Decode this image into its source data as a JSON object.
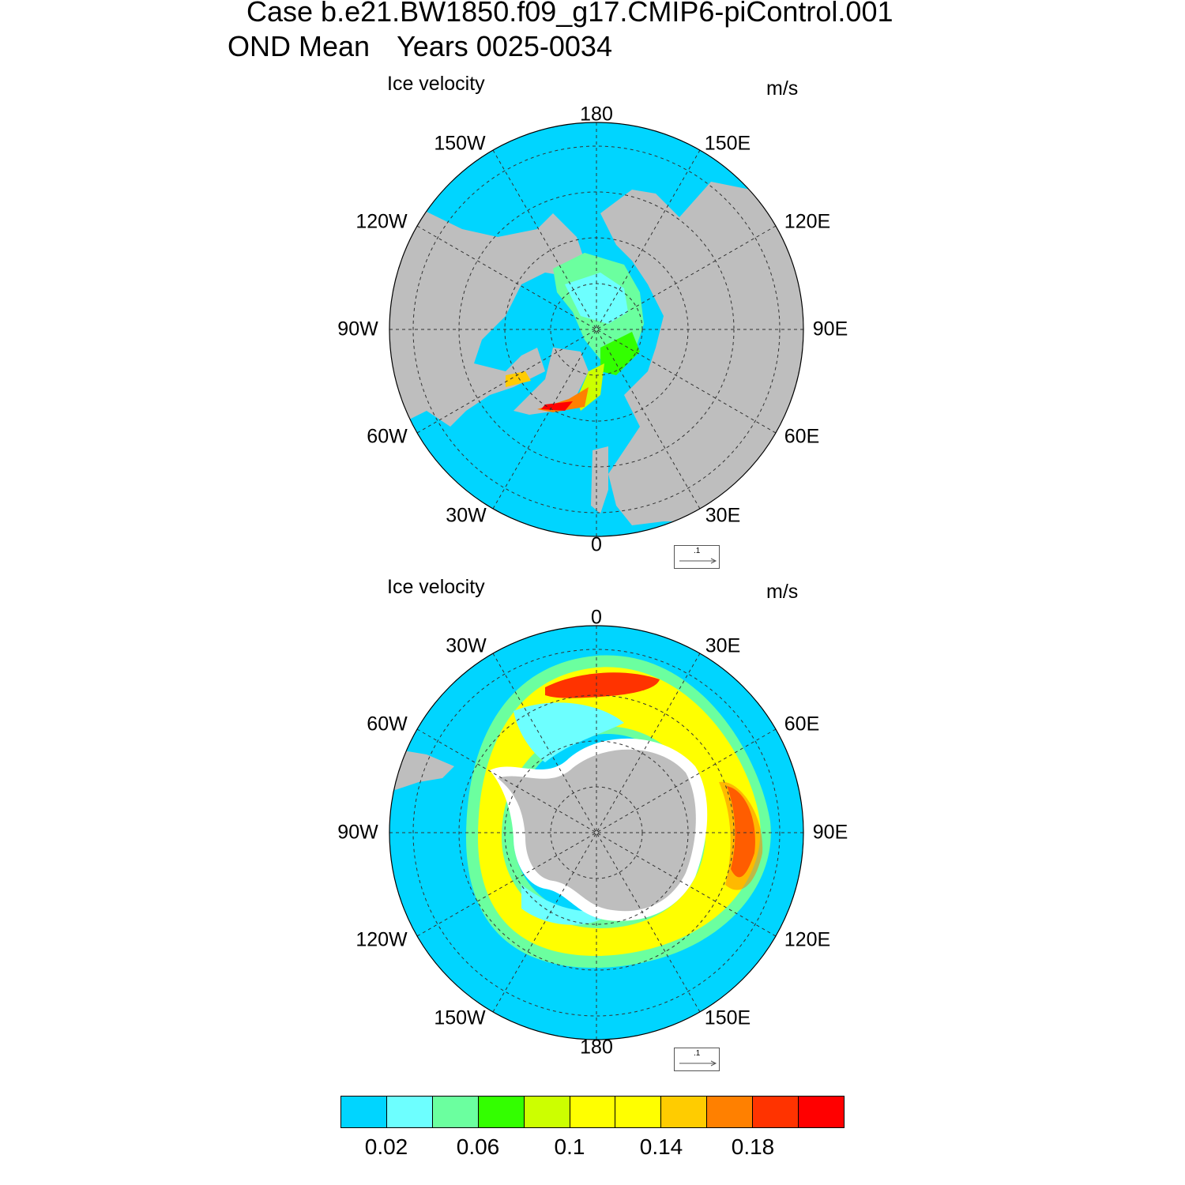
{
  "title": {
    "line1": "Case b.e21.BW1850.f09_g17.CMIP6-piControl.001",
    "season": "OND Mean",
    "years": "Years 0025-0034"
  },
  "panels": [
    {
      "id": "north",
      "title": "Ice velocity",
      "units": "m/s",
      "lon_labels": [
        "180",
        "150E",
        "120E",
        "90E",
        "60E",
        "30E",
        "0",
        "30W",
        "60W",
        "90W",
        "120W",
        "150W"
      ],
      "ref_vector": ".1"
    },
    {
      "id": "south",
      "title": "Ice velocity",
      "units": "m/s",
      "lon_labels": [
        "0",
        "30E",
        "60E",
        "90E",
        "120E",
        "150E",
        "180",
        "150W",
        "120W",
        "90W",
        "60W",
        "30W"
      ],
      "ref_vector": ".1"
    }
  ],
  "colorbar": {
    "colors": [
      "#00d5ff",
      "#6dffff",
      "#6bff9f",
      "#33ff00",
      "#ccff00",
      "#ffff00",
      "#ffff00",
      "#ffcc00",
      "#ff8000",
      "#ff3300",
      "#ff0000"
    ],
    "tick_labels": [
      "0.02",
      "0.06",
      "0.1",
      "0.14",
      "0.18"
    ]
  },
  "colors": {
    "ocean": "#00d5ff",
    "land": "#bebebe"
  }
}
